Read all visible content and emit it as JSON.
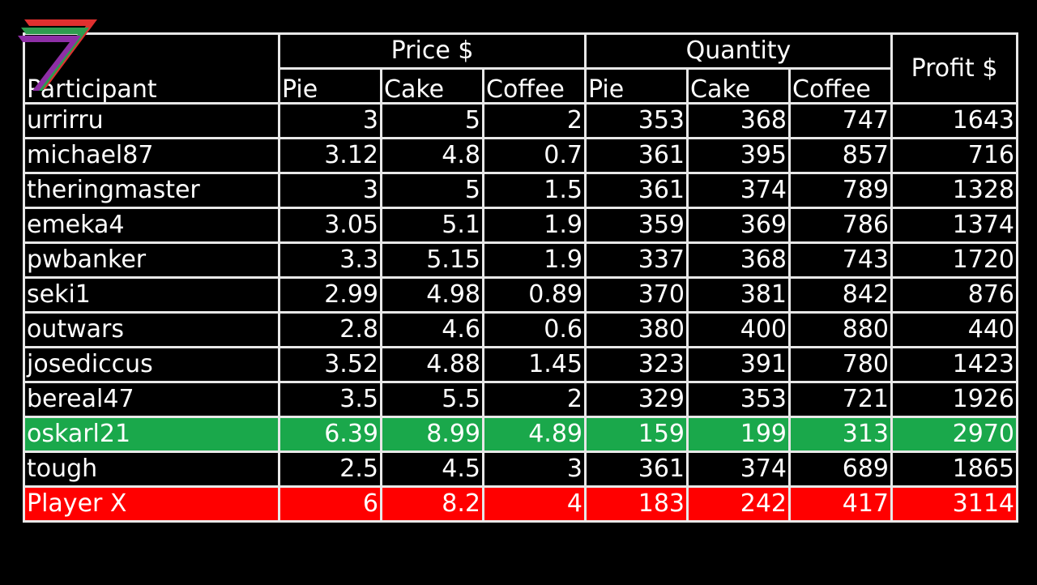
{
  "table": {
    "header": {
      "participant": "Participant",
      "price_group": "Price $",
      "quantity_group": "Quantity",
      "profit": "Profit $",
      "price_cols": [
        "Pie",
        "Cake",
        "Coffee"
      ],
      "quantity_cols": [
        "Pie",
        "Cake",
        "Coffee"
      ]
    },
    "rows": [
      {
        "name": "urrirru",
        "price": [
          "3",
          "5",
          "2"
        ],
        "qty": [
          "353",
          "368",
          "747"
        ],
        "profit": "1643",
        "highlight": ""
      },
      {
        "name": "michael87",
        "price": [
          "3.12",
          "4.8",
          "0.7"
        ],
        "qty": [
          "361",
          "395",
          "857"
        ],
        "profit": "716",
        "highlight": ""
      },
      {
        "name": "theringmaster",
        "price": [
          "3",
          "5",
          "1.5"
        ],
        "qty": [
          "361",
          "374",
          "789"
        ],
        "profit": "1328",
        "highlight": ""
      },
      {
        "name": "emeka4",
        "price": [
          "3.05",
          "5.1",
          "1.9"
        ],
        "qty": [
          "359",
          "369",
          "786"
        ],
        "profit": "1374",
        "highlight": ""
      },
      {
        "name": "pwbanker",
        "price": [
          "3.3",
          "5.15",
          "1.9"
        ],
        "qty": [
          "337",
          "368",
          "743"
        ],
        "profit": "1720",
        "highlight": ""
      },
      {
        "name": "seki1",
        "price": [
          "2.99",
          "4.98",
          "0.89"
        ],
        "qty": [
          "370",
          "381",
          "842"
        ],
        "profit": "876",
        "highlight": ""
      },
      {
        "name": "outwars",
        "price": [
          "2.8",
          "4.6",
          "0.6"
        ],
        "qty": [
          "380",
          "400",
          "880"
        ],
        "profit": "440",
        "highlight": ""
      },
      {
        "name": "josediccus",
        "price": [
          "3.52",
          "4.88",
          "1.45"
        ],
        "qty": [
          "323",
          "391",
          "780"
        ],
        "profit": "1423",
        "highlight": ""
      },
      {
        "name": "bereal47",
        "price": [
          "3.5",
          "5.5",
          "2"
        ],
        "qty": [
          "329",
          "353",
          "721"
        ],
        "profit": "1926",
        "highlight": ""
      },
      {
        "name": "oskarl21",
        "price": [
          "6.39",
          "8.99",
          "4.89"
        ],
        "qty": [
          "159",
          "199",
          "313"
        ],
        "profit": "2970",
        "highlight": "green"
      },
      {
        "name": "tough",
        "price": [
          "2.5",
          "4.5",
          "3"
        ],
        "qty": [
          "361",
          "374",
          "689"
        ],
        "profit": "1865",
        "highlight": ""
      },
      {
        "name": "Player X",
        "price": [
          "6",
          "8.2",
          "4"
        ],
        "qty": [
          "183",
          "242",
          "417"
        ],
        "profit": "3114",
        "highlight": "red"
      }
    ]
  },
  "colors": {
    "background": "#000000",
    "border": "#e8e8e8",
    "highlight_green": "#1aa84b",
    "highlight_red": "#ff0000",
    "logo_colors": [
      "#e0302f",
      "#2e9c4f",
      "#8e2fa6"
    ]
  },
  "logo": {
    "icon": "seven-stripes-logo-icon"
  }
}
